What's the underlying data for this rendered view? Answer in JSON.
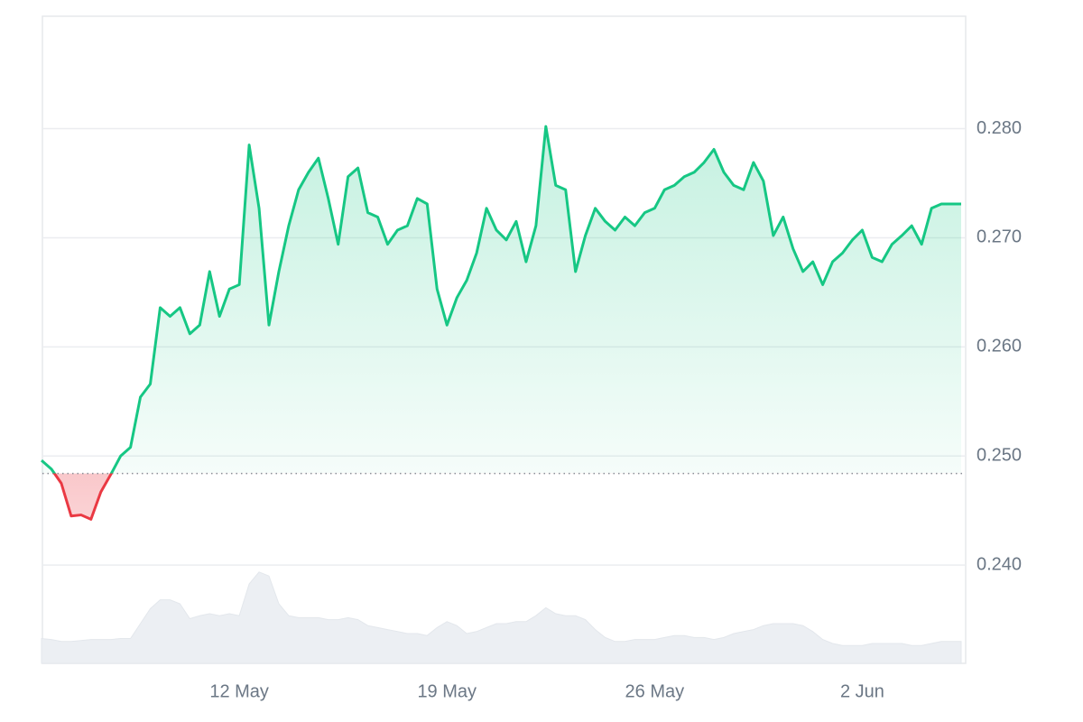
{
  "chart_data": {
    "type": "line",
    "x": [
      null,
      null,
      null,
      null,
      null,
      null,
      null,
      null,
      null,
      null,
      null,
      null,
      null,
      null,
      null,
      null,
      null,
      null,
      null,
      null,
      "12 May",
      null,
      null,
      null,
      null,
      null,
      null,
      null,
      null,
      null,
      null,
      null,
      null,
      null,
      null,
      null,
      null,
      null,
      null,
      null,
      null,
      "19 May",
      null,
      null,
      null,
      null,
      null,
      null,
      null,
      null,
      null,
      null,
      null,
      null,
      null,
      null,
      null,
      null,
      null,
      null,
      null,
      null,
      "26 May",
      null,
      null,
      null,
      null,
      null,
      null,
      null,
      null,
      null,
      null,
      null,
      null,
      null,
      null,
      null,
      null,
      null,
      null,
      null,
      null,
      "2 Jun",
      null,
      null,
      null,
      null,
      null,
      null,
      null,
      null,
      null,
      null
    ],
    "values": [
      0.2496,
      0.2488,
      0.2475,
      0.2445,
      0.2446,
      0.2442,
      0.2467,
      0.2483,
      0.25,
      0.2508,
      0.2554,
      0.2566,
      0.2636,
      0.2628,
      0.2636,
      0.2612,
      0.262,
      0.2669,
      0.2628,
      0.2653,
      0.2657,
      0.2785,
      0.2727,
      0.262,
      0.2669,
      0.2711,
      0.2744,
      0.276,
      0.2773,
      0.2736,
      0.2694,
      0.2756,
      0.2764,
      0.2723,
      0.2719,
      0.2694,
      0.2707,
      0.2711,
      0.2736,
      0.2731,
      0.2653,
      0.262,
      0.2645,
      0.2661,
      0.2686,
      0.2727,
      0.2707,
      0.2698,
      0.2715,
      0.2678,
      0.2711,
      0.2802,
      0.2748,
      0.2744,
      0.2669,
      0.2702,
      0.2727,
      0.2715,
      0.2707,
      0.2719,
      0.2711,
      0.2723,
      0.2727,
      0.2744,
      0.2748,
      0.2756,
      0.276,
      0.2769,
      0.2781,
      0.276,
      0.2748,
      0.2744,
      0.2769,
      0.2752,
      0.2702,
      0.2719,
      0.269,
      0.2669,
      0.2678,
      0.2657,
      0.2678,
      0.2686,
      0.2698,
      0.2707,
      0.2682,
      0.2678,
      0.2694,
      0.2702,
      0.2711,
      0.2694,
      0.2727,
      0.2731,
      0.2731,
      0.2731
    ],
    "baseline": 0.2484,
    "up_color": "#16c784",
    "down_color": "#ea3943",
    "ylim": [
      0.231,
      0.2903
    ],
    "yticks": [
      {
        "value": 0.24,
        "label": "0.240"
      },
      {
        "value": 0.25,
        "label": "0.250"
      },
      {
        "value": 0.26,
        "label": "0.260"
      },
      {
        "value": 0.27,
        "label": "0.270"
      },
      {
        "value": 0.28,
        "label": "0.280"
      }
    ],
    "grid": true,
    "volume": {
      "color": "#eceff3",
      "ylim": [
        0,
        100
      ],
      "values": [
        25,
        24,
        22,
        22,
        23,
        24,
        24,
        24,
        25,
        25,
        40,
        55,
        64,
        64,
        60,
        45,
        48,
        50,
        48,
        50,
        48,
        80,
        92,
        88,
        60,
        48,
        46,
        46,
        46,
        44,
        44,
        46,
        44,
        38,
        36,
        34,
        32,
        30,
        30,
        28,
        36,
        42,
        38,
        30,
        32,
        36,
        40,
        40,
        42,
        42,
        48,
        56,
        50,
        48,
        48,
        44,
        34,
        26,
        22,
        22,
        24,
        24,
        24,
        26,
        28,
        28,
        26,
        26,
        24,
        26,
        30,
        32,
        34,
        38,
        40,
        40,
        40,
        38,
        32,
        24,
        20,
        18,
        18,
        18,
        20,
        20,
        20,
        20,
        18,
        18,
        20,
        22,
        22,
        22
      ]
    }
  }
}
